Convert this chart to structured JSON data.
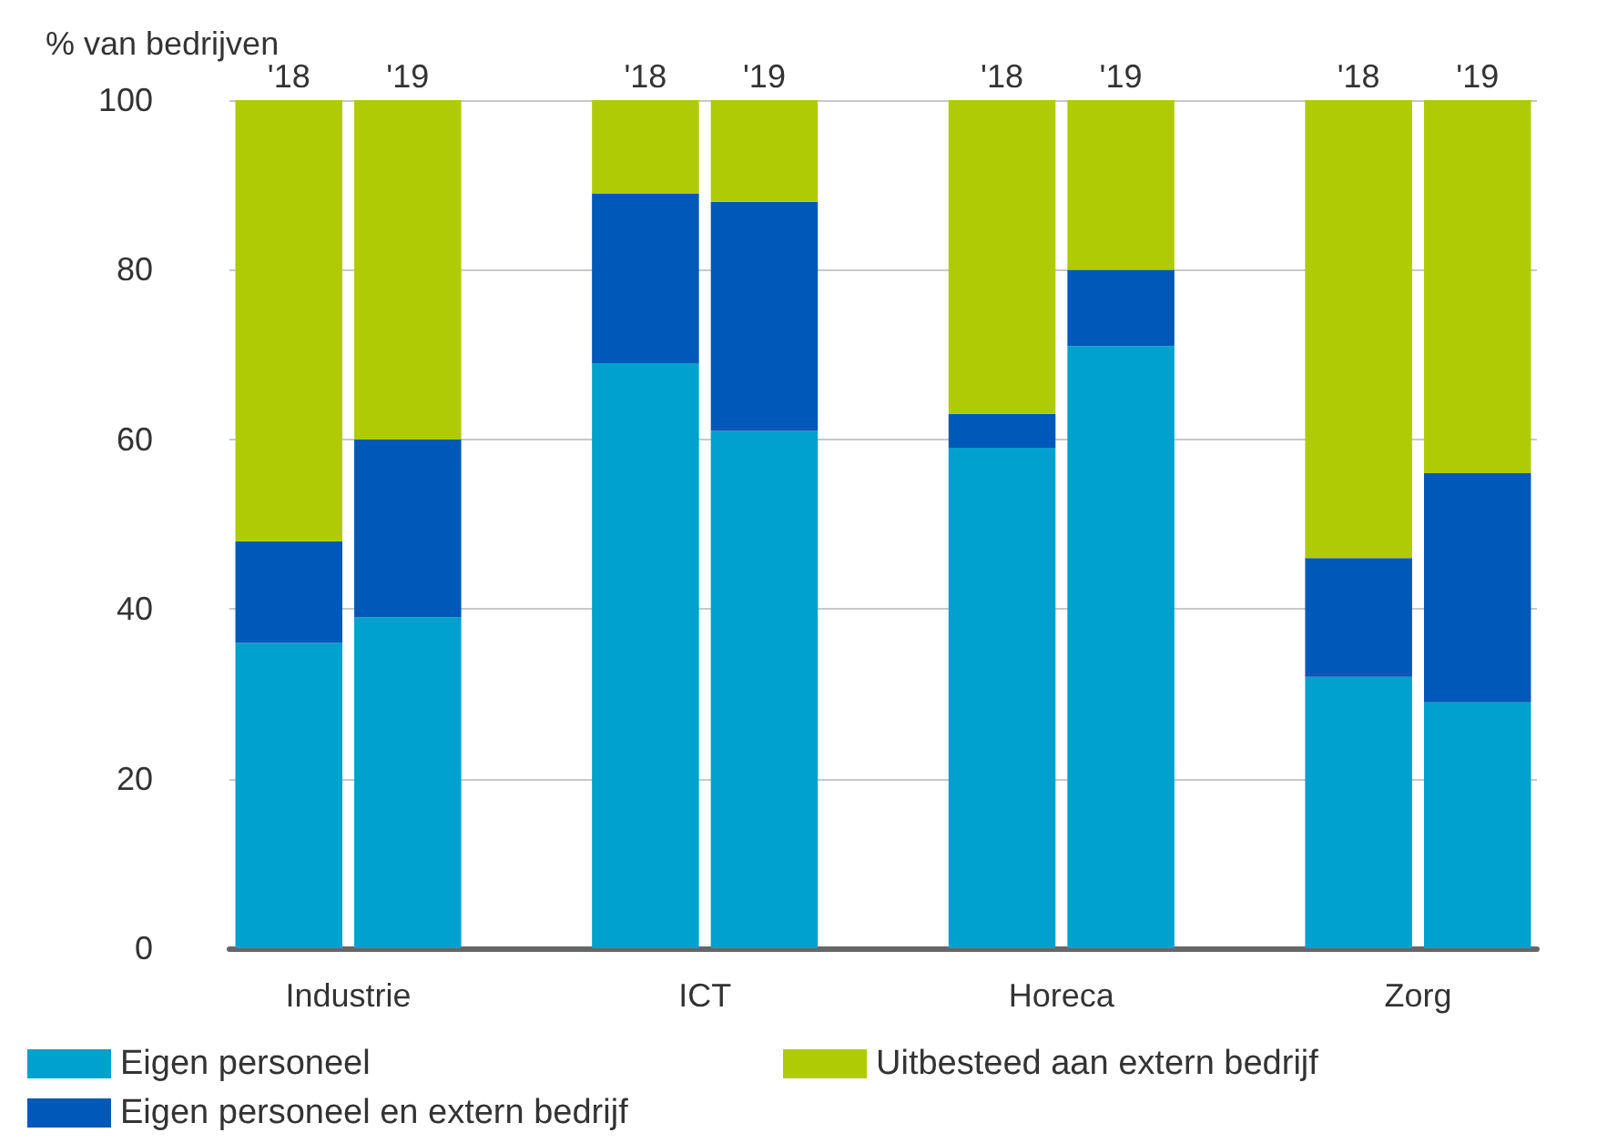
{
  "chart_data": {
    "type": "bar",
    "stacked": true,
    "ylabel": "% van bedrijven",
    "categories": [
      "'18",
      "'19",
      null,
      "'18",
      "'19",
      null,
      "'18",
      "'19",
      null,
      "'18",
      "'19"
    ],
    "series": [
      {
        "name": "Eigen personeel",
        "color": "#00a1cd",
        "values": [
          36,
          39,
          null,
          69,
          61,
          null,
          59,
          71,
          null,
          32,
          29
        ]
      },
      {
        "name": "Eigen personeel en extern bedrijf",
        "color": "#0058b8",
        "values": [
          12,
          21,
          null,
          20,
          27,
          null,
          4,
          9,
          null,
          14,
          27
        ]
      },
      {
        "name": "Uitbesteed aan extern bedrijf",
        "color": "#afcb05",
        "values": [
          52,
          40,
          null,
          11,
          12,
          null,
          37,
          20,
          null,
          54,
          44
        ]
      }
    ],
    "annotations": [
      "Industrie",
      "ICT",
      "Horeca",
      "Zorg"
    ],
    "ylim": [
      0,
      100
    ],
    "yticks": [
      0,
      20,
      40,
      60,
      80,
      100
    ],
    "grid": "y",
    "legend": "bottom"
  }
}
